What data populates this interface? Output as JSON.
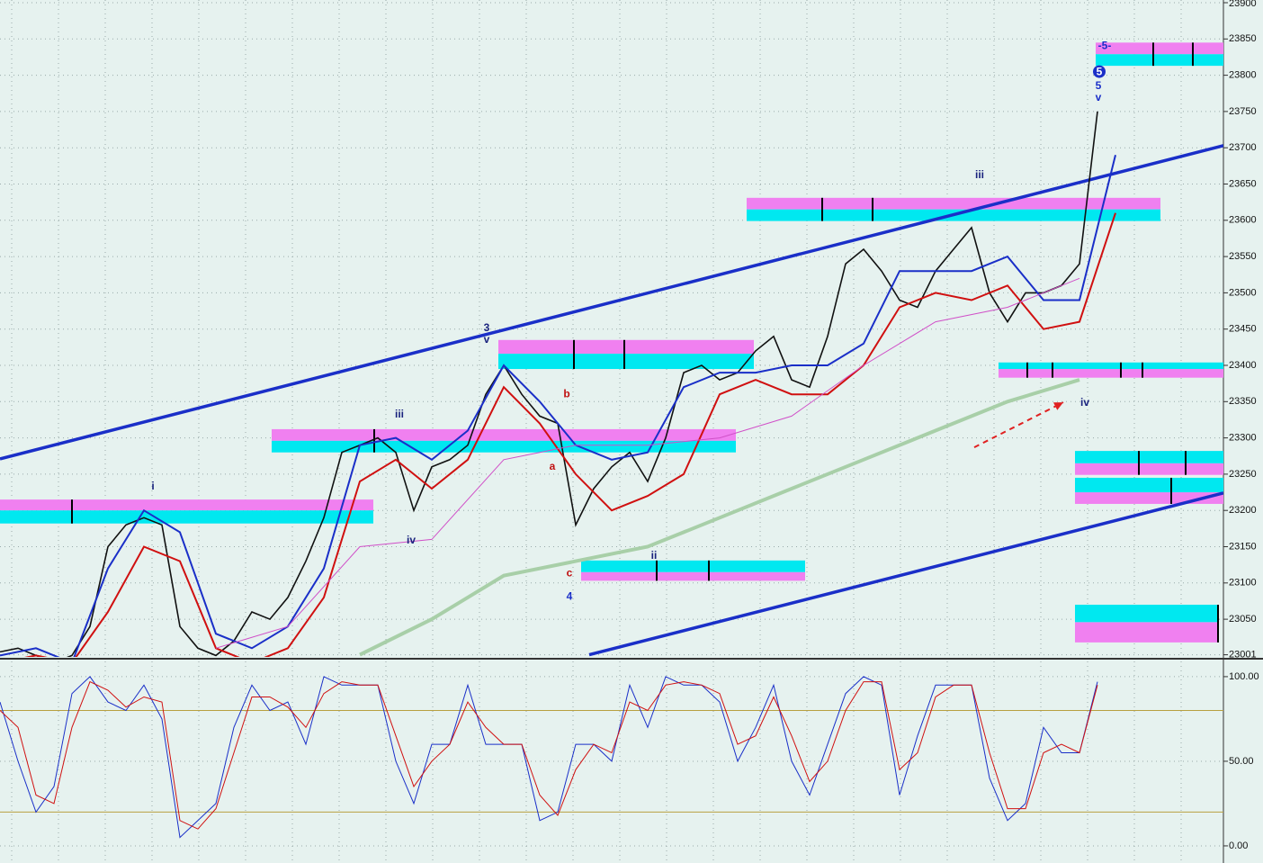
{
  "chart_data": [
    {
      "type": "line",
      "xlim": [
        0,
        340
      ],
      "ylim": [
        23001,
        23900
      ],
      "yticks": [
        23001,
        23050,
        23100,
        23150,
        23200,
        23250,
        23300,
        23350,
        23400,
        23450,
        23500,
        23550,
        23600,
        23650,
        23700,
        23750,
        23800,
        23850,
        23900
      ],
      "grid": true,
      "series": [
        {
          "color": "#111111",
          "width": 1.6,
          "x": [
            0,
            5,
            10,
            15,
            20,
            25,
            30,
            35,
            40,
            45,
            50,
            55,
            60,
            65,
            70,
            75,
            80,
            85,
            90,
            95,
            100,
            105,
            110,
            115,
            120,
            125,
            130,
            135,
            140,
            145,
            150,
            155,
            160,
            165,
            170,
            175,
            180,
            185,
            190,
            195,
            200,
            205,
            210,
            215,
            220,
            225,
            230,
            235,
            240,
            245,
            250,
            255,
            260,
            265,
            270,
            275,
            280,
            285,
            290,
            295,
            300,
            305
          ],
          "values": [
            23005,
            23010,
            23000,
            22990,
            23000,
            23040,
            23150,
            23180,
            23190,
            23180,
            23040,
            23010,
            23000,
            23020,
            23060,
            23050,
            23080,
            23130,
            23190,
            23280,
            23290,
            23300,
            23280,
            23200,
            23260,
            23270,
            23290,
            23360,
            23400,
            23360,
            23330,
            23320,
            23180,
            23230,
            23260,
            23280,
            23240,
            23300,
            23390,
            23400,
            23380,
            23390,
            23420,
            23440,
            23380,
            23370,
            23440,
            23540,
            23560,
            23530,
            23490,
            23480,
            23530,
            23560,
            23590,
            23500,
            23460,
            23500,
            23500,
            23510,
            23540,
            23750
          ]
        },
        {
          "color": "#1a2fc8",
          "width": 2,
          "x": [
            0,
            10,
            20,
            30,
            40,
            50,
            60,
            70,
            80,
            90,
            100,
            110,
            120,
            130,
            140,
            150,
            160,
            170,
            180,
            190,
            200,
            210,
            220,
            230,
            240,
            250,
            260,
            270,
            280,
            290,
            300,
            310
          ],
          "values": [
            23000,
            23010,
            22990,
            23120,
            23200,
            23170,
            23030,
            23010,
            23040,
            23120,
            23290,
            23300,
            23270,
            23310,
            23400,
            23350,
            23290,
            23270,
            23280,
            23370,
            23390,
            23390,
            23400,
            23400,
            23430,
            23530,
            23530,
            23530,
            23550,
            23490,
            23490,
            23690
          ]
        },
        {
          "color": "#d01010",
          "width": 2,
          "x": [
            0,
            10,
            20,
            30,
            40,
            50,
            60,
            70,
            80,
            90,
            100,
            110,
            120,
            130,
            140,
            150,
            160,
            170,
            180,
            190,
            200,
            210,
            220,
            230,
            240,
            250,
            260,
            270,
            280,
            290,
            300,
            310
          ],
          "values": [
            22990,
            23000,
            22990,
            23060,
            23150,
            23130,
            23010,
            22990,
            23010,
            23080,
            23240,
            23270,
            23230,
            23270,
            23370,
            23320,
            23250,
            23200,
            23220,
            23250,
            23360,
            23380,
            23360,
            23360,
            23400,
            23480,
            23500,
            23490,
            23510,
            23450,
            23460,
            23610
          ]
        },
        {
          "color": "#d050c8",
          "width": 1,
          "x": [
            60,
            80,
            100,
            120,
            140,
            160,
            180,
            200,
            220,
            240,
            260,
            280,
            300
          ],
          "values": [
            23010,
            23040,
            23150,
            23160,
            23270,
            23290,
            23290,
            23300,
            23330,
            23400,
            23460,
            23480,
            23520
          ]
        },
        {
          "color": "#a8cfa8",
          "width": 4,
          "x": [
            100,
            120,
            140,
            160,
            180,
            200,
            220,
            240,
            260,
            280,
            300
          ],
          "values": [
            23001,
            23050,
            23110,
            23130,
            23150,
            23190,
            23230,
            23270,
            23310,
            23350,
            23380
          ]
        }
      ],
      "zones": [
        {
          "x": [
            0,
            103.75
          ],
          "magenta": [
            23200,
            23215
          ],
          "cyan": [
            23182,
            23200
          ],
          "ticks": [
            20
          ]
        },
        {
          "x": [
            75.5,
            204.5
          ],
          "magenta": [
            23296,
            23312
          ],
          "cyan": [
            23280,
            23296
          ],
          "ticks": [
            104
          ]
        },
        {
          "x": [
            138.5,
            209.5
          ],
          "magenta": [
            23416,
            23435
          ],
          "cyan": [
            23395,
            23416
          ],
          "ticks": [
            159.5,
            173.5
          ]
        },
        {
          "x": [
            207.5,
            322.5
          ],
          "magenta": [
            23615,
            23631
          ],
          "cyan": [
            23599,
            23615
          ],
          "ticks": [
            228.5,
            242.5
          ]
        },
        {
          "x": [
            304.5,
            340
          ],
          "magenta": [
            23829,
            23845
          ],
          "cyan": [
            23813,
            23829
          ],
          "ticks": [
            320.5,
            331.5
          ]
        },
        {
          "x": [
            277.5,
            340
          ],
          "magenta": [
            23383,
            23395
          ],
          "cyan": [
            23395,
            23404
          ],
          "ticks": [
            285.5,
            292.5,
            311.5,
            317.5
          ]
        },
        {
          "x": [
            161.5,
            223.75
          ],
          "magenta": [
            23103,
            23115
          ],
          "cyan": [
            23115,
            23131
          ],
          "ticks": [
            182.5,
            197
          ]
        },
        {
          "x": [
            298.75,
            340
          ],
          "magenta": [
            23249,
            23265
          ],
          "cyan": [
            23265,
            23282
          ],
          "ticks": [
            316.5,
            329.5
          ]
        },
        {
          "x": [
            298.75,
            340
          ],
          "magenta": [
            23209,
            23225
          ],
          "cyan": [
            23225,
            23245
          ],
          "ticks": [
            325.5
          ]
        },
        {
          "x": [
            298.75,
            338.75
          ],
          "magenta": [
            23018,
            23046
          ],
          "cyan": [
            23046,
            23070
          ],
          "ticks": [
            338.5
          ]
        }
      ],
      "trendlines": [
        {
          "x": [
            0,
            340
          ],
          "y": [
            23271,
            23703
          ],
          "color": "#1a2fc8"
        },
        {
          "x": [
            163.75,
            340
          ],
          "y": [
            23001,
            23224
          ],
          "color": "#1a2fc8"
        },
        {
          "x": [
            270.75,
            295.5
          ],
          "y": [
            23287,
            23349
          ],
          "color": "#e02020",
          "dashed": true
        }
      ],
      "annotations": [
        {
          "text": "i",
          "x": 42.5,
          "y": 23233,
          "color": "#1a237e"
        },
        {
          "text": "iii",
          "x": 111,
          "y": 23332,
          "color": "#1a237e"
        },
        {
          "text": "iv",
          "x": 114.25,
          "y": 23158,
          "color": "#1a237e"
        },
        {
          "text": "3",
          "x": 135.25,
          "y": 23451,
          "color": "#1a237e"
        },
        {
          "text": "v",
          "x": 135.25,
          "y": 23435,
          "color": "#1a237e"
        },
        {
          "text": "b",
          "x": 157.5,
          "y": 23360,
          "color": "#c01010"
        },
        {
          "text": "a",
          "x": 153.5,
          "y": 23260,
          "color": "#c01010"
        },
        {
          "text": "c",
          "x": 158.25,
          "y": 23113,
          "color": "#c01010"
        },
        {
          "text": "4",
          "x": 158.25,
          "y": 23081,
          "color": "#1a2fc8"
        },
        {
          "text": "ii",
          "x": 181.75,
          "y": 23137,
          "color": "#1a237e"
        },
        {
          "text": "iii",
          "x": 272.25,
          "y": 23662,
          "color": "#1a237e"
        },
        {
          "text": "iv",
          "x": 301.5,
          "y": 23348,
          "color": "#1a237e"
        },
        {
          "text": "5",
          "x": 305.5,
          "y": 23805,
          "color": "#1a2fc8",
          "circled": true
        },
        {
          "text": "5",
          "x": 305.25,
          "y": 23785,
          "color": "#1a2fc8"
        },
        {
          "text": "v",
          "x": 305.25,
          "y": 23769,
          "color": "#1a2fc8"
        },
        {
          "text": "-5-",
          "x": 307,
          "y": 23840,
          "color": "#1a2fc8"
        }
      ]
    },
    {
      "type": "line",
      "xlim": [
        0,
        340
      ],
      "ylim": [
        -8,
        109
      ],
      "yticks": [
        {
          "value": 100,
          "label": "100.00"
        },
        {
          "value": 50,
          "label": "50.00"
        },
        {
          "value": 0,
          "label": "0.00"
        }
      ],
      "levels": [
        20,
        80
      ],
      "grid": true,
      "series": [
        {
          "color": "#1a2fc8",
          "width": 1,
          "x": [
            0,
            5,
            10,
            15,
            20,
            25,
            30,
            35,
            40,
            45,
            50,
            55,
            60,
            65,
            70,
            75,
            80,
            85,
            90,
            95,
            100,
            105,
            110,
            115,
            120,
            125,
            130,
            135,
            140,
            145,
            150,
            155,
            160,
            165,
            170,
            175,
            180,
            185,
            190,
            195,
            200,
            205,
            210,
            215,
            220,
            225,
            230,
            235,
            240,
            245,
            250,
            255,
            260,
            265,
            270,
            275,
            280,
            285,
            290,
            295,
            300,
            305
          ],
          "values": [
            85,
            50,
            20,
            35,
            90,
            100,
            85,
            80,
            95,
            75,
            5,
            15,
            25,
            70,
            95,
            80,
            85,
            60,
            100,
            95,
            95,
            95,
            50,
            25,
            60,
            60,
            95,
            60,
            60,
            60,
            15,
            20,
            60,
            60,
            50,
            95,
            70,
            100,
            95,
            95,
            85,
            50,
            70,
            95,
            50,
            30,
            60,
            90,
            100,
            95,
            30,
            65,
            95,
            95,
            95,
            40,
            15,
            25,
            70,
            55,
            55,
            97
          ]
        },
        {
          "color": "#d01010",
          "width": 1,
          "x": [
            0,
            5,
            10,
            15,
            20,
            25,
            30,
            35,
            40,
            45,
            50,
            55,
            60,
            65,
            70,
            75,
            80,
            85,
            90,
            95,
            100,
            105,
            110,
            115,
            120,
            125,
            130,
            135,
            140,
            145,
            150,
            155,
            160,
            165,
            170,
            175,
            180,
            185,
            190,
            195,
            200,
            205,
            210,
            215,
            220,
            225,
            230,
            235,
            240,
            245,
            250,
            255,
            260,
            265,
            270,
            275,
            280,
            285,
            290,
            295,
            300,
            305
          ],
          "values": [
            80,
            70,
            30,
            25,
            70,
            97,
            92,
            82,
            88,
            85,
            15,
            10,
            22,
            55,
            88,
            88,
            82,
            70,
            90,
            97,
            95,
            95,
            65,
            35,
            50,
            60,
            85,
            70,
            60,
            60,
            30,
            18,
            45,
            60,
            55,
            85,
            80,
            95,
            97,
            95,
            90,
            60,
            65,
            88,
            65,
            38,
            50,
            80,
            97,
            97,
            45,
            55,
            88,
            95,
            95,
            55,
            22,
            22,
            55,
            60,
            55,
            95
          ]
        }
      ]
    }
  ]
}
